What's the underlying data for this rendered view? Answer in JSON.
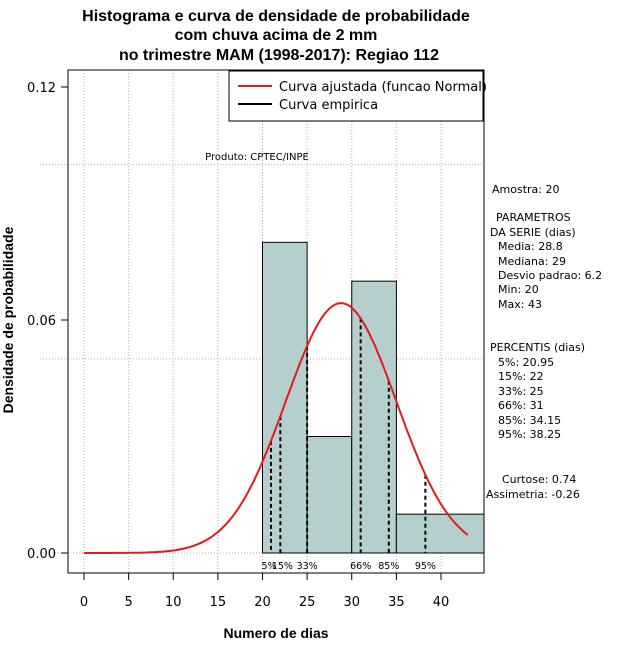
{
  "chart_data": {
    "type": "bar",
    "title_lines": [
      "Histograma e curva de densidade de probabilidade",
      "com chuva acima de 2 mm",
      "no trimestre MAM (1998-2017): Regiao 112"
    ],
    "xlabel": "Numero de dias",
    "ylabel": "Densidade de probabilidade",
    "xlim": [
      -1.5,
      45
    ],
    "ylim": [
      -0.005,
      0.125
    ],
    "x_ticks": [
      0,
      5,
      10,
      15,
      20,
      25,
      30,
      35,
      40
    ],
    "y_ticks": [
      0.0,
      0.06,
      0.12
    ],
    "y_tick_labels": [
      "0.00",
      "0.06",
      "0.12"
    ],
    "grid": true,
    "histogram": [
      {
        "x0": 20,
        "x1": 25,
        "density": 0.08
      },
      {
        "x0": 25,
        "x1": 30,
        "density": 0.03
      },
      {
        "x0": 30,
        "x1": 35,
        "density": 0.07
      },
      {
        "x0": 35,
        "x1": 45,
        "density": 0.01
      }
    ],
    "fitted_curve": {
      "name": "Curva ajustada (funcao Normal)",
      "mean": 28.8,
      "sd": 6.2,
      "x_range": [
        0,
        43
      ],
      "color": "#e41a1c"
    },
    "empirical_curve": {
      "name": "Curva empirica",
      "color": "#000000"
    },
    "legend": [
      "Curva ajustada (funcao Normal)",
      "Curva empirica"
    ],
    "legend_position": "top-right",
    "percentiles": [
      {
        "label": "5%",
        "value": 20.95
      },
      {
        "label": "15%",
        "value": 22
      },
      {
        "label": "33%",
        "value": 25
      },
      {
        "label": "66%",
        "value": 31
      },
      {
        "label": "85%",
        "value": 34.15
      },
      {
        "label": "95%",
        "value": 38.25
      }
    ],
    "product_label": "Produto: CPTEC/INPE",
    "bar_color": "#b5cfcf"
  },
  "side_panel": {
    "amostra": "Amostra: 20",
    "param_title_1": "PARAMETROS",
    "param_title_2": "DA SERIE (dias)",
    "media": "Media: 28.8",
    "mediana": "Mediana: 29",
    "desvio": "Desvio padrao: 6.2",
    "min": "Min: 20",
    "max": "Max: 43",
    "perc_title": "PERCENTIS (dias)",
    "p5": "5%: 20.95",
    "p15": "15%: 22",
    "p33": "33%: 25",
    "p66": "66%: 31",
    "p85": "85%: 34.15",
    "p95": "95%: 38.25",
    "curtose": "Curtose: 0.74",
    "assimetria": "Assimetria: -0.26"
  }
}
